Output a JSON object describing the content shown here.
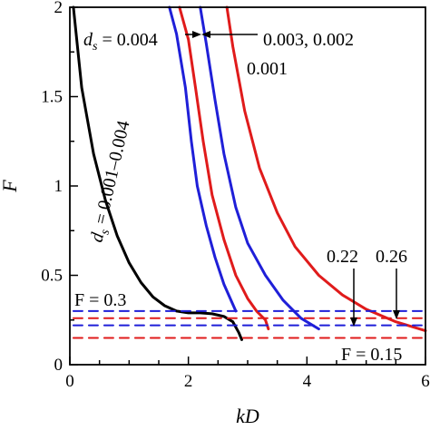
{
  "chart_data": {
    "type": "line",
    "title": "",
    "xlabel": "kD",
    "ylabel": "F",
    "xlim": [
      0,
      6
    ],
    "ylim": [
      0,
      2
    ],
    "x_ticks": [
      "0",
      "2",
      "4",
      "6"
    ],
    "y_ticks": [
      "0",
      "0.5",
      "1",
      "1.5",
      "2"
    ],
    "grid": false,
    "legend": "none",
    "colors": {
      "black": "#000000",
      "blue": "#1f1fd8",
      "red": "#e01b1b"
    },
    "series": [
      {
        "color": "black",
        "style": "solid",
        "x": [
          0.06,
          0.2,
          0.4,
          0.6,
          0.8,
          1.0,
          1.2,
          1.4,
          1.6,
          1.8,
          2.0,
          2.2,
          2.4,
          2.6,
          2.75,
          2.85,
          2.9
        ],
        "y": [
          2.0,
          1.55,
          1.18,
          0.92,
          0.72,
          0.57,
          0.46,
          0.38,
          0.33,
          0.3,
          0.29,
          0.29,
          0.285,
          0.27,
          0.24,
          0.18,
          0.14
        ]
      },
      {
        "color": "blue",
        "style": "solid",
        "x": [
          1.68,
          1.8,
          1.95,
          2.05,
          2.15,
          2.3,
          2.45,
          2.6,
          2.8
        ],
        "y": [
          2.0,
          1.85,
          1.55,
          1.25,
          1.0,
          0.78,
          0.6,
          0.45,
          0.3
        ]
      },
      {
        "color": "red",
        "style": "solid",
        "x": [
          1.85,
          2.0,
          2.12,
          2.25,
          2.4,
          2.6,
          2.8,
          3.0,
          3.15,
          3.3,
          3.35
        ],
        "y": [
          2.0,
          1.82,
          1.55,
          1.25,
          0.95,
          0.7,
          0.5,
          0.37,
          0.3,
          0.25,
          0.2
        ]
      },
      {
        "color": "blue",
        "style": "solid",
        "x": [
          2.2,
          2.3,
          2.45,
          2.6,
          2.8,
          3.0,
          3.3,
          3.6,
          3.9,
          4.2
        ],
        "y": [
          2.0,
          1.8,
          1.48,
          1.18,
          0.88,
          0.68,
          0.5,
          0.36,
          0.26,
          0.2
        ]
      },
      {
        "color": "red",
        "style": "solid",
        "x": [
          2.65,
          2.75,
          2.95,
          3.2,
          3.5,
          3.8,
          4.2,
          4.6,
          5.0,
          5.5,
          6.0
        ],
        "y": [
          2.0,
          1.78,
          1.42,
          1.1,
          0.85,
          0.66,
          0.5,
          0.39,
          0.31,
          0.24,
          0.19
        ]
      },
      {
        "color": "blue",
        "style": "dashed",
        "x": [
          0.06,
          6.0
        ],
        "y": [
          0.3,
          0.3
        ]
      },
      {
        "color": "blue",
        "style": "dashed",
        "x": [
          0.06,
          6.0
        ],
        "y": [
          0.22,
          0.22
        ]
      },
      {
        "color": "red",
        "style": "dashed",
        "x": [
          0.06,
          6.0
        ],
        "y": [
          0.26,
          0.26
        ]
      },
      {
        "color": "red",
        "style": "dashed",
        "x": [
          0.06,
          6.0
        ],
        "y": [
          0.15,
          0.15
        ]
      }
    ],
    "annotations": {
      "ds_symbol": "d",
      "ds_sub": "s",
      "ds_eq_0004": " = 0.004",
      "label_0003_0002": "0.003, 0.002",
      "label_0001": "0.001",
      "rotated_label": " = 0.001–0.004",
      "f_03": "F = 0.3",
      "f_015": "F = 0.15",
      "val_022": "0.22",
      "val_026": "0.26"
    }
  }
}
